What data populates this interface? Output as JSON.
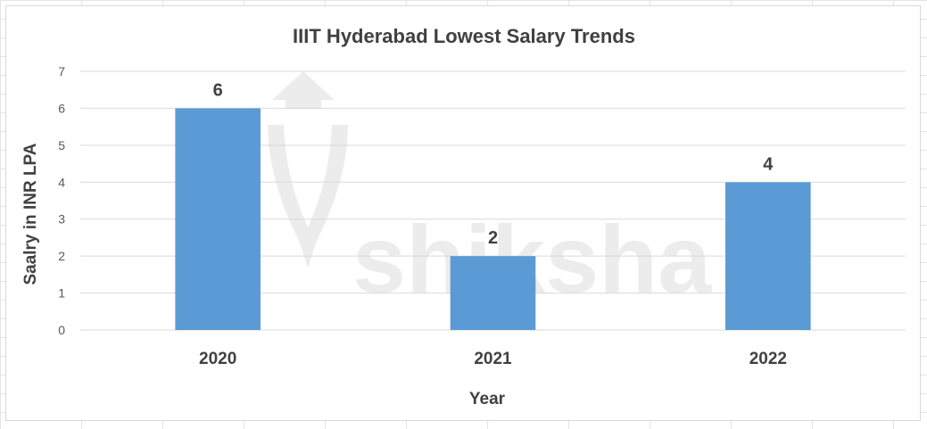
{
  "colors": {
    "bar": "#5b9bd5",
    "gridline": "#d9d9d9",
    "text": "#404040",
    "watermark": "#ececec"
  },
  "watermark": {
    "text": "shiksha",
    "icon": "graduation-cap-logo-icon"
  },
  "chart_data": {
    "type": "bar",
    "title": "IIIT Hyderabad Lowest Salary Trends",
    "xlabel": "Year",
    "ylabel": "Saalry in INR LPA",
    "categories": [
      "2020",
      "2021",
      "2022"
    ],
    "values": [
      6,
      2,
      4
    ],
    "data_labels": [
      "6",
      "2",
      "4"
    ],
    "yticks": [
      "0",
      "1",
      "2",
      "3",
      "4",
      "5",
      "6",
      "7"
    ],
    "ylim": [
      0,
      7
    ],
    "grid": true,
    "legend": "none"
  }
}
